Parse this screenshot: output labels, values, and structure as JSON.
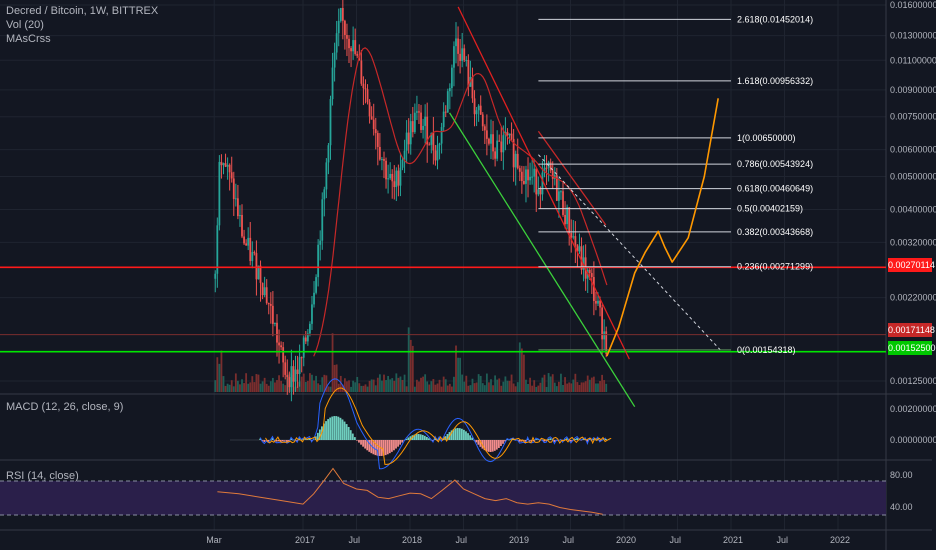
{
  "legend": {
    "title": "Decred / Bitcoin, 1W, BITTREX",
    "vol": "Vol (20)",
    "ma": "MAsCrss"
  },
  "macd_label": "MACD (12, 26, close, 9)",
  "rsi_label": "RSI (14, close)",
  "colors": {
    "background": "#131722",
    "up": "#26a69a",
    "down": "#ef5350",
    "resistance": "#ff1a1a",
    "support": "#00e600",
    "ma": "#c62828",
    "projection": "#ff9800",
    "fib": "#d1d4dc",
    "rsi_band": "#2a1f4a",
    "rsi_line": "#e07a3b"
  },
  "price_tags": [
    {
      "text": "0.00270114",
      "color": "#ff1a1a"
    },
    {
      "text": "0.00171148",
      "color": "#c62828"
    },
    {
      "text": "0.00152500",
      "color": "#00c800"
    }
  ],
  "chart_data": {
    "type": "candlestick",
    "title": "Decred / Bitcoin, 1W, BITTREX",
    "x_ticks": [
      "Mar",
      "2017",
      "Jul",
      "2018",
      "Jul",
      "2019",
      "Jul",
      "2020",
      "Jul",
      "2021",
      "Jul",
      "2022"
    ],
    "y_ticks": [
      "0.01600000",
      "0.01300000",
      "0.01100000",
      "0.00900000",
      "0.00750000",
      "0.00600000",
      "0.00500000",
      "0.00400000",
      "0.00320000",
      "0.00270114",
      "0.00220000",
      "0.00171148",
      "0.00152500",
      "0.00125000"
    ],
    "fib_levels": [
      {
        "label": "2.618(0.01452014)",
        "value": 0.01452014
      },
      {
        "label": "1.618(0.00956332)",
        "value": 0.00956332
      },
      {
        "label": "1(0.00650000)",
        "value": 0.0065
      },
      {
        "label": "0.786(0.00543924)",
        "value": 0.00543924
      },
      {
        "label": "0.618(0.00460649)",
        "value": 0.00460649
      },
      {
        "label": "0.5(0.00402159)",
        "value": 0.00402159
      },
      {
        "label": "0.382(0.00343668)",
        "value": 0.00343668
      },
      {
        "label": "0.236(0.00271299)",
        "value": 0.00271299
      },
      {
        "label": "0(0.00154318)",
        "value": 0.00154318
      }
    ],
    "horizontal_lines": [
      {
        "name": "resistance",
        "value": 0.00270114
      },
      {
        "name": "support",
        "value": 0.001525
      }
    ],
    "price_path": [
      [
        2016.18,
        0.0025
      ],
      [
        2016.22,
        0.0062
      ],
      [
        2016.35,
        0.0045
      ],
      [
        2016.45,
        0.0032
      ],
      [
        2016.6,
        0.0026
      ],
      [
        2016.72,
        0.0019
      ],
      [
        2016.82,
        0.00135
      ],
      [
        2016.9,
        0.0013
      ],
      [
        2016.98,
        0.0014
      ],
      [
        2017.05,
        0.0018
      ],
      [
        2017.12,
        0.0027
      ],
      [
        2017.2,
        0.0045
      ],
      [
        2017.28,
        0.0105
      ],
      [
        2017.35,
        0.0145
      ],
      [
        2017.45,
        0.0125
      ],
      [
        2017.55,
        0.0098
      ],
      [
        2017.65,
        0.0075
      ],
      [
        2017.75,
        0.0055
      ],
      [
        2017.85,
        0.0045
      ],
      [
        2017.95,
        0.0062
      ],
      [
        2018.05,
        0.0075
      ],
      [
        2018.15,
        0.0069
      ],
      [
        2018.25,
        0.0059
      ],
      [
        2018.35,
        0.0086
      ],
      [
        2018.43,
        0.0128
      ],
      [
        2018.5,
        0.0112
      ],
      [
        2018.6,
        0.0082
      ],
      [
        2018.7,
        0.0066
      ],
      [
        2018.8,
        0.0059
      ],
      [
        2018.9,
        0.0064
      ],
      [
        2019.0,
        0.0056
      ],
      [
        2019.1,
        0.005
      ],
      [
        2019.2,
        0.0048
      ],
      [
        2019.3,
        0.0051
      ],
      [
        2019.4,
        0.0044
      ],
      [
        2019.5,
        0.0035
      ],
      [
        2019.6,
        0.0028
      ],
      [
        2019.7,
        0.0024
      ],
      [
        2019.78,
        0.0019
      ],
      [
        2019.84,
        0.0016
      ]
    ],
    "volume_spikes": [
      2016.22,
      2017.3,
      2018.0,
      2018.45,
      2019.05
    ],
    "macd_range": [
      -0.0008,
      0.0026
    ],
    "rsi_ticks": [
      80.0,
      40.0
    ],
    "rsi_series": [
      [
        2016.2,
        58
      ],
      [
        2016.4,
        55
      ],
      [
        2016.6,
        50
      ],
      [
        2016.8,
        45
      ],
      [
        2017.0,
        40
      ],
      [
        2017.1,
        55
      ],
      [
        2017.2,
        75
      ],
      [
        2017.28,
        92
      ],
      [
        2017.38,
        70
      ],
      [
        2017.5,
        62
      ],
      [
        2017.6,
        60
      ],
      [
        2017.7,
        50
      ],
      [
        2017.8,
        48
      ],
      [
        2017.9,
        52
      ],
      [
        2018.0,
        56
      ],
      [
        2018.1,
        55
      ],
      [
        2018.2,
        48
      ],
      [
        2018.3,
        60
      ],
      [
        2018.42,
        75
      ],
      [
        2018.5,
        62
      ],
      [
        2018.6,
        55
      ],
      [
        2018.7,
        48
      ],
      [
        2018.8,
        45
      ],
      [
        2018.9,
        48
      ],
      [
        2019.0,
        42
      ],
      [
        2019.1,
        40
      ],
      [
        2019.2,
        42
      ],
      [
        2019.3,
        40
      ],
      [
        2019.4,
        35
      ],
      [
        2019.5,
        32
      ],
      [
        2019.6,
        30
      ],
      [
        2019.7,
        28
      ],
      [
        2019.8,
        25
      ]
    ],
    "projection_path": [
      [
        2019.84,
        0.00148
      ],
      [
        2019.95,
        0.0018
      ],
      [
        2020.1,
        0.0026
      ],
      [
        2020.2,
        0.003
      ],
      [
        2020.32,
        0.00345
      ],
      [
        2020.38,
        0.0031
      ],
      [
        2020.45,
        0.0028
      ],
      [
        2020.6,
        0.0033
      ],
      [
        2020.75,
        0.005
      ],
      [
        2020.88,
        0.0085
      ]
    ]
  }
}
